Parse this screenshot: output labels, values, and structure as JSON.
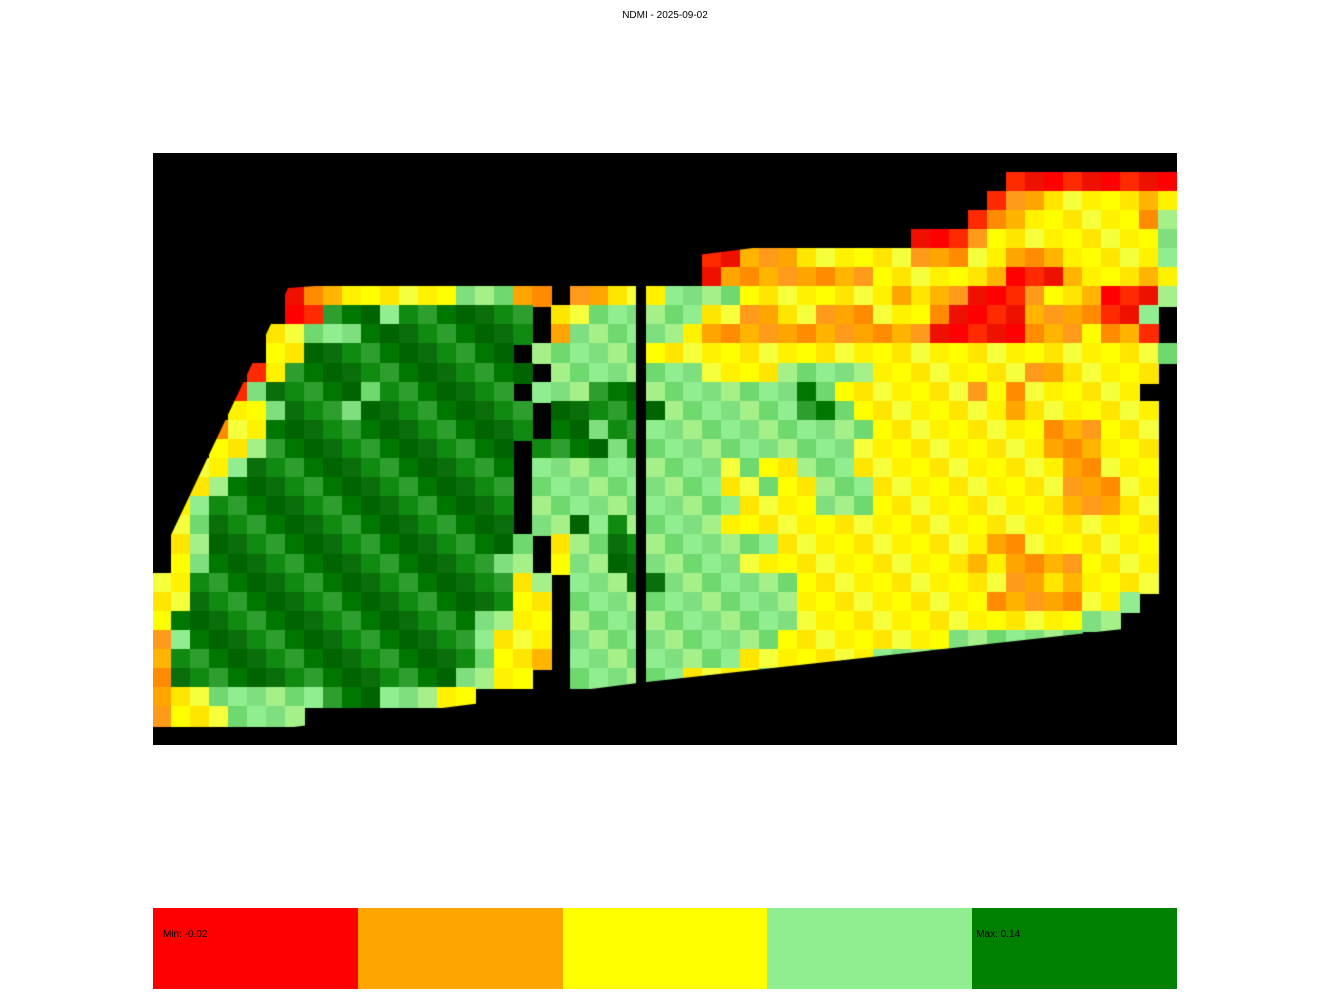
{
  "title": "NDMI - 2025-09-02",
  "map": {
    "background": "#000000",
    "grid": {
      "cols": 54,
      "rows": 31,
      "cells": [
        "xxxxxxxxxxxxxxxxxxxxxxxxxxxxxxxxxxxxxxxxxxxxxxxxxxxxxx",
        "xxxxxxxxxxxxxxxxxxxxxxxxxxxxxxxxxxxxxxxxxxxxxrrrrrrrrr",
        "xxxxxxxxxxxxxxxxxxxxxxxxxxxxxxxxxxxxxxxxxxxxrooyyyyyoy",
        "xxxxxxxxxxxxxxxxxxxxxxxxxxxxxxxxxxxxxxxxxxxrooyyyyyyol",
        "xxxxxxxxxxxxxxxxxxxxxxxxxxxxxxxxxxxxxxxxrrroyyyyyyyyyl",
        "xxxxxxxxxxxxxxxxxxxxxxxxxxxxxrroooyyyyyyoooyyoooyyyyyl",
        "xxxxxxxxxxxxxxxxxxxxxxxxxxxxxrooooooooyyyyyyorrroyyyoy",
        "xxxxxxxrooyyyyyylllooxooyyyllllyyyyyyyyoyoorrroyyorrrl",
        "xxxxxxxrrggglgggggggxyyllllllyyooyyoooyyyorrrroooorrl",
        "xxxxxxyylllgggggggggxollllllyoooooooooooorrrrroooyoorx",
        "xxxxxxyygggggggggggxllllllyyyyyyyyyyyyyyyyyyyyyyyyyyyl",
        "xxxxxrygggggggggggggxllllllllyyyylllllyyyyyyyyooyyyyyx",
        "xxxxrlggggglgggggggxlllgggllllllllglyyyyyyyoyoyyyyyyx",
        "xxxxyylggglgggggggggxgggggglllllllgglyyyyyyyyoyyyyyyyx",
        "xxxoyyggggggggggggggxgglggllllllllllllyyyyyyyyyoooyyyx",
        "xxxyylgggggggggggggxgggglglllllllllllyyyyyyyyyyoooyyyx",
        "xxyylggggggggggggggxllllllllllylyylllyyyyyyyyyyyooyyyx",
        "xxylgggggggggggggggxllllllllllyylyylllyyyyyyyyyyoooyyx",
        "xylggggggggggggggggxlllllllllllyyyylllyyyyyyyyyyoooyyx",
        "xylggggggggggggggggxllglglllllyyyyyyyyyyyyyyyyyyyyyyyx",
        "xylgggggggggggggggglxyllgglllllllyyyyyyyyyyyooyyyyyyyx",
        "xylgggggggggggggggllxyllgglllllyyyyyyyyyyyyoyooooyyyyx",
        "yygggggggggggggggggylxlllgglllllllyyyyyyyyyyyooyoyyyyx",
        "yygggggggggggggggggyyxllllllllllllyyyyyyyyyyoooooyylx",
        "yggggggggggggggggllyyxllllllllllllyyyyyyyyyyyyyyyllxx",
        "olggggggggggggggglyyyxlllllllllllyyyyyyyyylllllllxxxxx",
        "ogggggggggggggggglyyoxlllllllllyyyyyyyllllxxxxxxxxxxxx",
        "ogggggggggggggggllyyxxllllllyyyyllxxxxxxxxxxxxxxxxxxxx",
        "oyyllllllggglllyyxxxxxxxxxxxxxxxxxxxxxxxxxxxxxxxxxxxxx",
        "oyyyllllxxxxxxxxxxxxxxxxxxxxxxxxxxxxxxxxxxxxxxxxxxxxxx",
        "xxxxxxxxxxxxxxxxxxxxxxxxxxxxxxxxxxxxxxxxxxxxxxxxxxxxxx"
      ],
      "palette": {
        "x": "#000000",
        "r": "#ff0000",
        "o": "#ff8c00",
        "y": "#ffff00",
        "l": "#90ee90",
        "g": "#118a11"
      }
    }
  },
  "legend": {
    "classes": [
      {
        "color": "#ff0000",
        "label": "Min: -0.02"
      },
      {
        "color": "#ffa500",
        "label": ""
      },
      {
        "color": "#ffff00",
        "label": ""
      },
      {
        "color": "#90ee90",
        "label": ""
      },
      {
        "color": "#008000",
        "label": "Max: 0.14"
      }
    ],
    "min": -0.02,
    "max": 0.14
  }
}
